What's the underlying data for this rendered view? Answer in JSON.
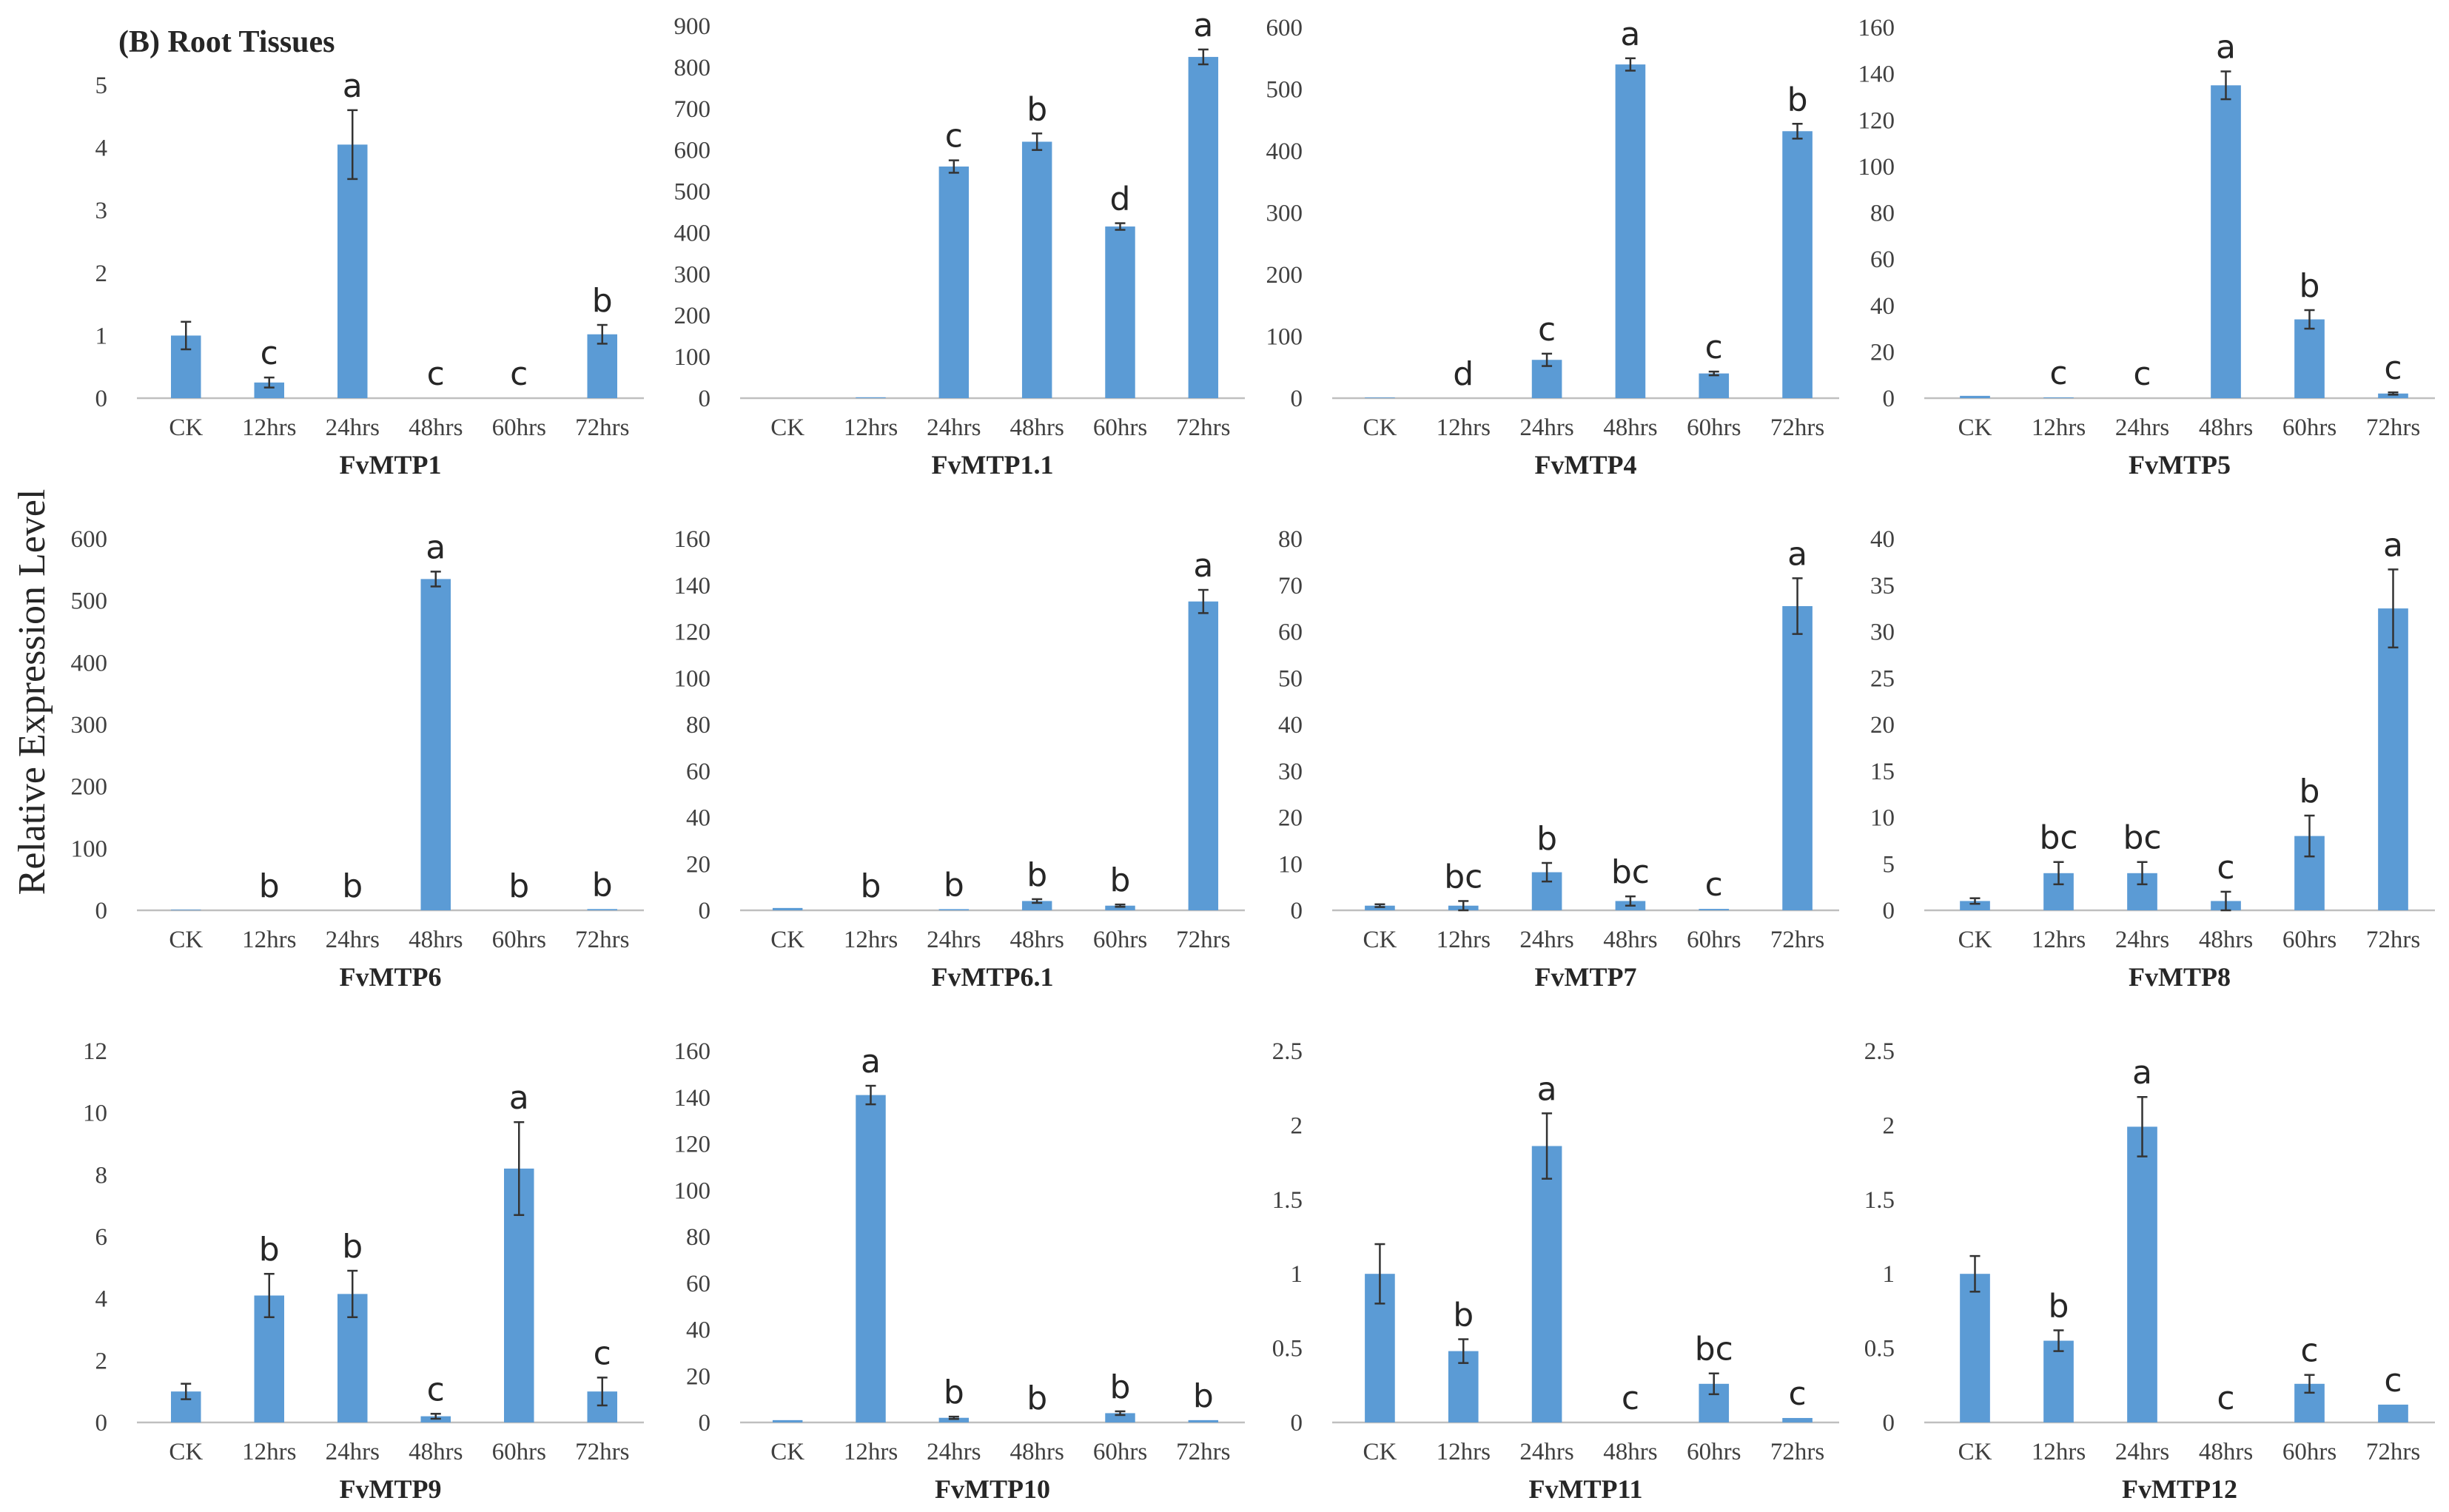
{
  "figure_title": "(B) Root Tissues",
  "y_axis_label": "Relative Expression Level",
  "colors": {
    "bar": "#5B9BD5",
    "axis": "#bfbfbf",
    "text": "#404040",
    "error_bar": "#333333"
  },
  "chart_data": [
    {
      "type": "bar",
      "title": "FvMTP1",
      "categories": [
        "CK",
        "12hrs",
        "24hrs",
        "48hrs",
        "60hrs",
        "72hrs"
      ],
      "values": [
        1.0,
        0.25,
        4.05,
        0,
        0,
        1.02
      ],
      "errors": [
        0.22,
        0.08,
        0.55,
        0,
        0,
        0.15
      ],
      "labels": [
        "",
        "c",
        "a",
        "c",
        "c",
        "b"
      ],
      "ylim": [
        0,
        5
      ],
      "yticks": [
        "0",
        "1",
        "2",
        "3",
        "4",
        "5"
      ]
    },
    {
      "type": "bar",
      "title": "FvMTP1.1",
      "categories": [
        "CK",
        "12hrs",
        "24hrs",
        "48hrs",
        "60hrs",
        "72hrs"
      ],
      "values": [
        0,
        2,
        560,
        620,
        415,
        825
      ],
      "errors": [
        0,
        0,
        15,
        20,
        8,
        18
      ],
      "labels": [
        "",
        "",
        "c",
        "b",
        "d",
        "a"
      ],
      "ylim": [
        0,
        900
      ],
      "yticks": [
        "0",
        "100",
        "200",
        "300",
        "400",
        "500",
        "600",
        "700",
        "800",
        "900"
      ]
    },
    {
      "type": "bar",
      "title": "FvMTP4",
      "categories": [
        "CK",
        "12hrs",
        "24hrs",
        "48hrs",
        "60hrs",
        "72hrs"
      ],
      "values": [
        1,
        0,
        62,
        540,
        40,
        432
      ],
      "errors": [
        0,
        0,
        10,
        10,
        3,
        12
      ],
      "labels": [
        "",
        "d",
        "c",
        "a",
        "c",
        "b"
      ],
      "ylim": [
        0,
        600
      ],
      "yticks": [
        "0",
        "100",
        "200",
        "300",
        "400",
        "500",
        "600"
      ]
    },
    {
      "type": "bar",
      "title": "FvMTP5",
      "categories": [
        "CK",
        "12hrs",
        "24hrs",
        "48hrs",
        "60hrs",
        "72hrs"
      ],
      "values": [
        1,
        0.3,
        0,
        135,
        34,
        2
      ],
      "errors": [
        0,
        0,
        0,
        6,
        4,
        0.5
      ],
      "labels": [
        "",
        "c",
        "c",
        "a",
        "b",
        "c"
      ],
      "ylim": [
        0,
        160
      ],
      "yticks": [
        "0",
        "20",
        "40",
        "60",
        "80",
        "100",
        "120",
        "140",
        "160"
      ]
    },
    {
      "type": "bar",
      "title": "FvMTP6",
      "categories": [
        "CK",
        "12hrs",
        "24hrs",
        "48hrs",
        "60hrs",
        "72hrs"
      ],
      "values": [
        1,
        0,
        0,
        535,
        0,
        2
      ],
      "errors": [
        0,
        0,
        0,
        12,
        0,
        0
      ],
      "labels": [
        "",
        "b",
        "b",
        "a",
        "b",
        "b"
      ],
      "ylim": [
        0,
        600
      ],
      "yticks": [
        "0",
        "100",
        "200",
        "300",
        "400",
        "500",
        "600"
      ]
    },
    {
      "type": "bar",
      "title": "FvMTP6.1",
      "categories": [
        "CK",
        "12hrs",
        "24hrs",
        "48hrs",
        "60hrs",
        "72hrs"
      ],
      "values": [
        1,
        0,
        0.5,
        4,
        2,
        133
      ],
      "errors": [
        0,
        0,
        0,
        0.8,
        0.5,
        5
      ],
      "labels": [
        "",
        "b",
        "b",
        "b",
        "b",
        "a"
      ],
      "ylim": [
        0,
        160
      ],
      "yticks": [
        "0",
        "20",
        "40",
        "60",
        "80",
        "100",
        "120",
        "140",
        "160"
      ]
    },
    {
      "type": "bar",
      "title": "FvMTP7",
      "categories": [
        "CK",
        "12hrs",
        "24hrs",
        "48hrs",
        "60hrs",
        "72hrs"
      ],
      "values": [
        1,
        1,
        8.2,
        2,
        0.3,
        65.5
      ],
      "errors": [
        0.3,
        1.0,
        2.0,
        1.0,
        0,
        6.0
      ],
      "labels": [
        "",
        "bc",
        "b",
        "bc",
        "c",
        "a"
      ],
      "ylim": [
        0,
        80
      ],
      "yticks": [
        "0",
        "10",
        "20",
        "30",
        "40",
        "50",
        "60",
        "70",
        "80"
      ]
    },
    {
      "type": "bar",
      "title": "FvMTP8",
      "categories": [
        "CK",
        "12hrs",
        "24hrs",
        "48hrs",
        "60hrs",
        "72hrs"
      ],
      "values": [
        1,
        4,
        4,
        1,
        8,
        32.5
      ],
      "errors": [
        0.3,
        1.2,
        1.2,
        1.0,
        2.2,
        4.2
      ],
      "labels": [
        "",
        "bc",
        "bc",
        "c",
        "b",
        "a"
      ],
      "ylim": [
        0,
        40
      ],
      "yticks": [
        "0",
        "5",
        "10",
        "15",
        "20",
        "25",
        "30",
        "35",
        "40"
      ]
    },
    {
      "type": "bar",
      "title": "FvMTP9",
      "categories": [
        "CK",
        "12hrs",
        "24hrs",
        "48hrs",
        "60hrs",
        "72hrs"
      ],
      "values": [
        1,
        4.1,
        4.15,
        0.2,
        8.2,
        1.0
      ],
      "errors": [
        0.25,
        0.7,
        0.75,
        0.08,
        1.5,
        0.45
      ],
      "labels": [
        "",
        "b",
        "b",
        "c",
        "a",
        "c"
      ],
      "ylim": [
        0,
        12
      ],
      "yticks": [
        "0",
        "2",
        "4",
        "6",
        "8",
        "10",
        "12"
      ]
    },
    {
      "type": "bar",
      "title": "FvMTP10",
      "categories": [
        "CK",
        "12hrs",
        "24hrs",
        "48hrs",
        "60hrs",
        "72hrs"
      ],
      "values": [
        1,
        141,
        2,
        0,
        4,
        1
      ],
      "errors": [
        0,
        4,
        0.5,
        0,
        0.8,
        0
      ],
      "labels": [
        "",
        "a",
        "b",
        "b",
        "b",
        "b"
      ],
      "ylim": [
        0,
        160
      ],
      "yticks": [
        "0",
        "20",
        "40",
        "60",
        "80",
        "100",
        "120",
        "140",
        "160"
      ]
    },
    {
      "type": "bar",
      "title": "FvMTP11",
      "categories": [
        "CK",
        "12hrs",
        "24hrs",
        "48hrs",
        "60hrs",
        "72hrs"
      ],
      "values": [
        1.0,
        0.48,
        1.86,
        0,
        0.26,
        0.03
      ],
      "errors": [
        0.2,
        0.08,
        0.22,
        0,
        0.07,
        0
      ],
      "labels": [
        "",
        "b",
        "a",
        "c",
        "bc",
        "c"
      ],
      "ylim": [
        0,
        2.5
      ],
      "yticks": [
        "0",
        "0.5",
        "1",
        "1.5",
        "2",
        "2.5"
      ]
    },
    {
      "type": "bar",
      "title": "FvMTP12",
      "categories": [
        "CK",
        "12hrs",
        "24hrs",
        "48hrs",
        "60hrs",
        "72hrs"
      ],
      "values": [
        1.0,
        0.55,
        1.99,
        0,
        0.26,
        0.12
      ],
      "errors": [
        0.12,
        0.07,
        0.2,
        0,
        0.06,
        0
      ],
      "labels": [
        "",
        "b",
        "a",
        "c",
        "c",
        "c"
      ],
      "ylim": [
        0,
        2.5
      ],
      "yticks": [
        "0",
        "0.5",
        "1",
        "1.5",
        "2",
        "2.5"
      ]
    }
  ]
}
